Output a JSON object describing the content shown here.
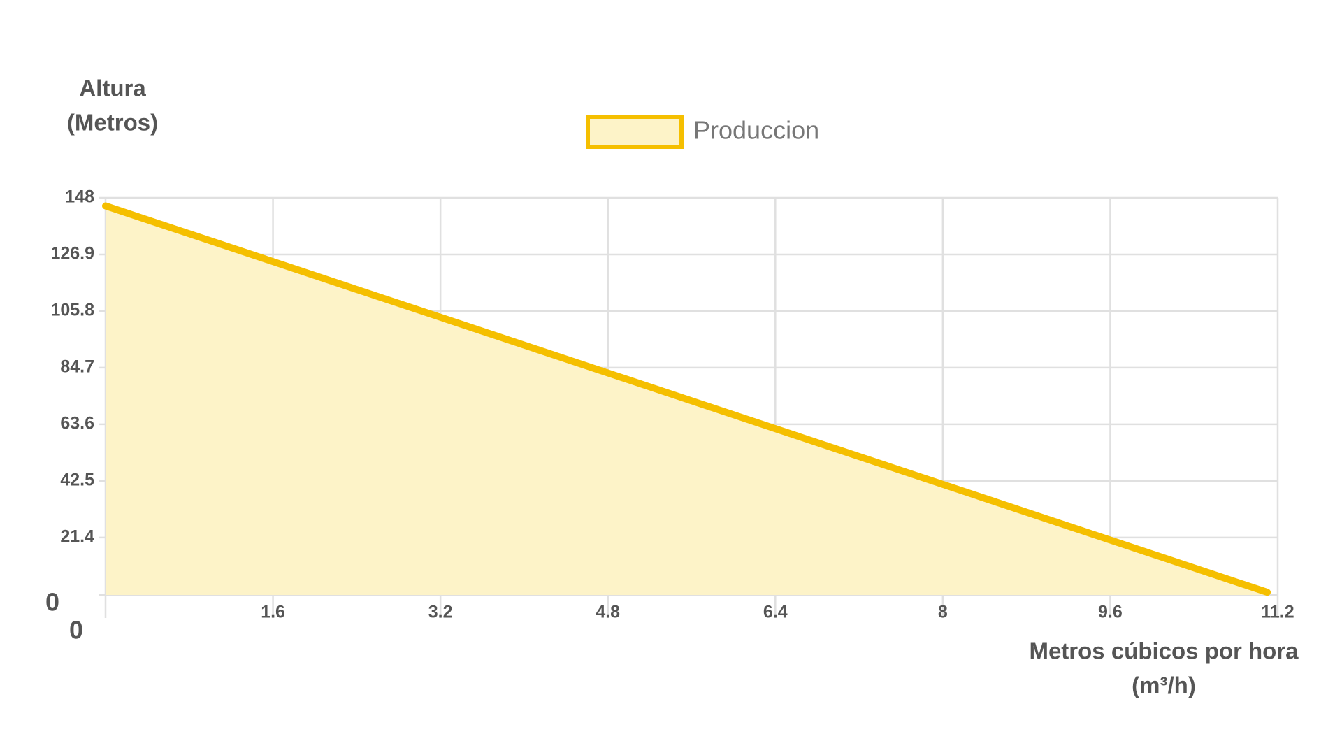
{
  "chart_data": {
    "type": "area",
    "y_label": [
      "Altura",
      "(Metros)"
    ],
    "x_label": [
      "Metros cúbicos por hora",
      "(m³/h)"
    ],
    "x": [
      0,
      11.1
    ],
    "series": [
      {
        "name": "Produccion",
        "color": "#f5bf00",
        "fill": "#fdf3c8",
        "values": [
          145,
          1
        ]
      }
    ],
    "xlim": [
      0,
      11.2
    ],
    "xticks": [
      0,
      1.6,
      3.2,
      4.8,
      6.4,
      8,
      9.6,
      11.2
    ],
    "ylim": [
      0,
      148
    ],
    "yticks": [
      0,
      21.4,
      42.5,
      63.6,
      84.7,
      105.8,
      126.9,
      148
    ],
    "grid": true,
    "legend": "top"
  }
}
